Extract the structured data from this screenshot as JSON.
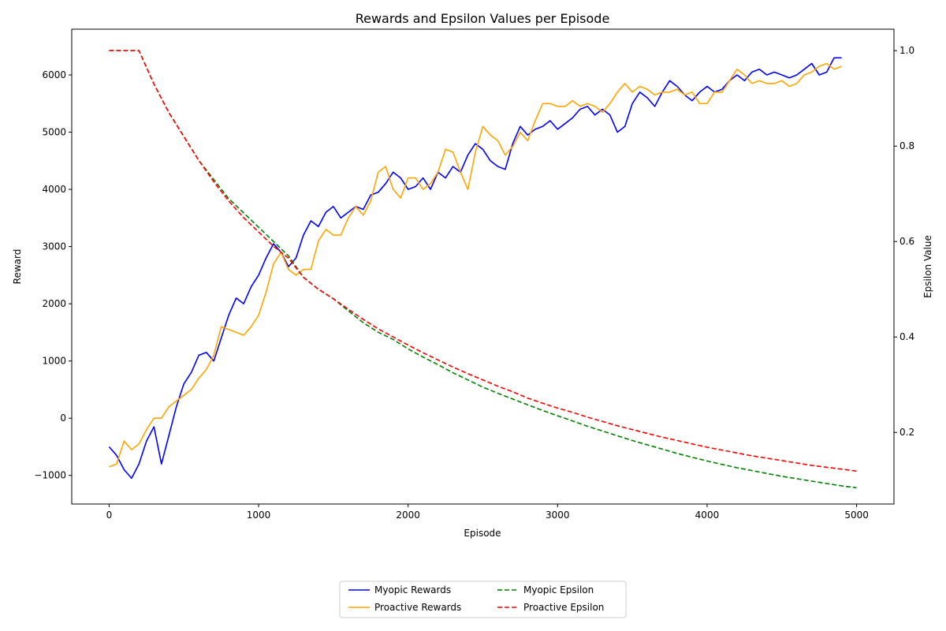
{
  "chart_data": {
    "type": "line",
    "title": "Rewards and Epsilon Values per Episode",
    "xlabel": "Episode",
    "ylabel": "Reward",
    "y2label": "Epsilon Value",
    "xlim": [
      -250,
      5250
    ],
    "ylim": [
      -1500,
      6800
    ],
    "y2lim": [
      0.05,
      1.045
    ],
    "xticks": [
      0,
      1000,
      2000,
      3000,
      4000,
      5000
    ],
    "yticks": [
      -1000,
      0,
      1000,
      2000,
      3000,
      4000,
      5000,
      6000
    ],
    "y2ticks": [
      0.2,
      0.4,
      0.6,
      0.8,
      1.0
    ],
    "grid": false,
    "legend_position": "bottom-center",
    "series": [
      {
        "name": "Myopic Rewards",
        "axis": "left",
        "color": "#0000ff",
        "style": "solid",
        "x": [
          0,
          50,
          100,
          150,
          200,
          250,
          300,
          350,
          400,
          450,
          500,
          550,
          600,
          650,
          700,
          750,
          800,
          850,
          900,
          950,
          1000,
          1050,
          1100,
          1150,
          1200,
          1250,
          1300,
          1350,
          1400,
          1450,
          1500,
          1550,
          1600,
          1650,
          1700,
          1750,
          1800,
          1850,
          1900,
          1950,
          2000,
          2050,
          2100,
          2150,
          2200,
          2250,
          2300,
          2350,
          2400,
          2450,
          2500,
          2550,
          2600,
          2650,
          2700,
          2750,
          2800,
          2850,
          2900,
          2950,
          3000,
          3050,
          3100,
          3150,
          3200,
          3250,
          3300,
          3350,
          3400,
          3450,
          3500,
          3550,
          3600,
          3650,
          3700,
          3750,
          3800,
          3850,
          3900,
          3950,
          4000,
          4050,
          4100,
          4150,
          4200,
          4250,
          4300,
          4350,
          4400,
          4450,
          4500,
          4550,
          4600,
          4650,
          4700,
          4750,
          4800,
          4850,
          4900
        ],
        "y": [
          -500,
          -650,
          -900,
          -1050,
          -800,
          -400,
          -150,
          -800,
          -300,
          200,
          600,
          800,
          1100,
          1150,
          1000,
          1400,
          1800,
          2100,
          2000,
          2300,
          2500,
          2800,
          3050,
          2900,
          2650,
          2800,
          3200,
          3450,
          3350,
          3600,
          3700,
          3500,
          3600,
          3700,
          3650,
          3900,
          3950,
          4100,
          4300,
          4200,
          4000,
          4050,
          4200,
          4000,
          4300,
          4200,
          4400,
          4300,
          4600,
          4800,
          4700,
          4500,
          4400,
          4350,
          4800,
          5100,
          4950,
          5050,
          5100,
          5200,
          5050,
          5150,
          5250,
          5400,
          5450,
          5300,
          5400,
          5300,
          5000,
          5100,
          5500,
          5700,
          5600,
          5450,
          5700,
          5900,
          5800,
          5650,
          5550,
          5700,
          5800,
          5700,
          5750,
          5900,
          6000,
          5900,
          6050,
          6100,
          6000,
          6050,
          6000,
          5950,
          6000,
          6100,
          6200,
          6000,
          6050,
          6300,
          6300
        ]
      },
      {
        "name": "Proactive Rewards",
        "axis": "left",
        "color": "#ffa500",
        "style": "solid",
        "x": [
          0,
          50,
          100,
          150,
          200,
          250,
          300,
          350,
          400,
          450,
          500,
          550,
          600,
          650,
          700,
          750,
          800,
          850,
          900,
          950,
          1000,
          1050,
          1100,
          1150,
          1200,
          1250,
          1300,
          1350,
          1400,
          1450,
          1500,
          1550,
          1600,
          1650,
          1700,
          1750,
          1800,
          1850,
          1900,
          1950,
          2000,
          2050,
          2100,
          2150,
          2200,
          2250,
          2300,
          2350,
          2400,
          2450,
          2500,
          2550,
          2600,
          2650,
          2700,
          2750,
          2800,
          2850,
          2900,
          2950,
          3000,
          3050,
          3100,
          3150,
          3200,
          3250,
          3300,
          3350,
          3400,
          3450,
          3500,
          3550,
          3600,
          3650,
          3700,
          3750,
          3800,
          3850,
          3900,
          3950,
          4000,
          4050,
          4100,
          4150,
          4200,
          4250,
          4300,
          4350,
          4400,
          4450,
          4500,
          4550,
          4600,
          4650,
          4700,
          4750,
          4800,
          4850,
          4900
        ],
        "y": [
          -850,
          -800,
          -400,
          -550,
          -450,
          -200,
          0,
          0,
          200,
          300,
          400,
          500,
          700,
          850,
          1100,
          1600,
          1550,
          1500,
          1450,
          1600,
          1800,
          2200,
          2700,
          2900,
          2600,
          2500,
          2600,
          2600,
          3100,
          3300,
          3200,
          3200,
          3500,
          3700,
          3550,
          3800,
          4300,
          4400,
          4000,
          3850,
          4200,
          4200,
          4000,
          4100,
          4300,
          4700,
          4650,
          4300,
          4000,
          4650,
          5100,
          4950,
          4850,
          4600,
          4750,
          5000,
          4850,
          5200,
          5500,
          5500,
          5450,
          5450,
          5550,
          5450,
          5500,
          5450,
          5350,
          5500,
          5700,
          5850,
          5700,
          5800,
          5750,
          5650,
          5700,
          5700,
          5750,
          5650,
          5700,
          5500,
          5500,
          5700,
          5700,
          5900,
          6100,
          6000,
          5850,
          5900,
          5850,
          5850,
          5900,
          5800,
          5850,
          6000,
          6050,
          6150,
          6200,
          6100,
          6150
        ]
      },
      {
        "name": "Myopic Epsilon",
        "axis": "right",
        "color": "#008000",
        "style": "dashed",
        "x": [
          0,
          100,
          200,
          300,
          400,
          500,
          600,
          700,
          800,
          900,
          1000,
          1100,
          1200,
          1300,
          1400,
          1500,
          1600,
          1700,
          1800,
          1900,
          2000,
          2100,
          2200,
          2300,
          2400,
          2500,
          2600,
          2700,
          2800,
          2900,
          3000,
          3100,
          3200,
          3300,
          3400,
          3500,
          3600,
          3700,
          3800,
          3900,
          4000,
          4100,
          4200,
          4300,
          4400,
          4500,
          4600,
          4700,
          4800,
          4900,
          5000
        ],
        "y": [
          1.0,
          1.0,
          1.0,
          0.93,
          0.87,
          0.82,
          0.77,
          0.73,
          0.69,
          0.66,
          0.63,
          0.6,
          0.57,
          0.525,
          0.5,
          0.48,
          0.455,
          0.43,
          0.41,
          0.395,
          0.375,
          0.358,
          0.342,
          0.325,
          0.31,
          0.295,
          0.282,
          0.27,
          0.258,
          0.246,
          0.235,
          0.224,
          0.213,
          0.203,
          0.193,
          0.183,
          0.174,
          0.165,
          0.156,
          0.148,
          0.14,
          0.133,
          0.126,
          0.12,
          0.114,
          0.108,
          0.103,
          0.098,
          0.093,
          0.088,
          0.084
        ]
      },
      {
        "name": "Proactive Epsilon",
        "axis": "right",
        "color": "#ff0000",
        "style": "dashed",
        "x": [
          0,
          100,
          200,
          300,
          400,
          500,
          600,
          700,
          800,
          900,
          1000,
          1100,
          1200,
          1300,
          1400,
          1500,
          1600,
          1700,
          1800,
          1900,
          2000,
          2100,
          2200,
          2300,
          2400,
          2500,
          2600,
          2700,
          2800,
          2900,
          3000,
          3100,
          3200,
          3300,
          3400,
          3500,
          3600,
          3700,
          3800,
          3900,
          4000,
          4100,
          4200,
          4300,
          4400,
          4500,
          4600,
          4700,
          4800,
          4900,
          5000
        ],
        "y": [
          1.0,
          1.0,
          1.0,
          0.93,
          0.87,
          0.82,
          0.77,
          0.725,
          0.685,
          0.65,
          0.62,
          0.59,
          0.565,
          0.525,
          0.5,
          0.48,
          0.458,
          0.437,
          0.417,
          0.4,
          0.383,
          0.367,
          0.352,
          0.337,
          0.323,
          0.31,
          0.297,
          0.285,
          0.272,
          0.261,
          0.251,
          0.242,
          0.232,
          0.223,
          0.214,
          0.206,
          0.198,
          0.19,
          0.183,
          0.176,
          0.169,
          0.163,
          0.157,
          0.151,
          0.146,
          0.141,
          0.136,
          0.131,
          0.127,
          0.123,
          0.119
        ]
      }
    ]
  }
}
